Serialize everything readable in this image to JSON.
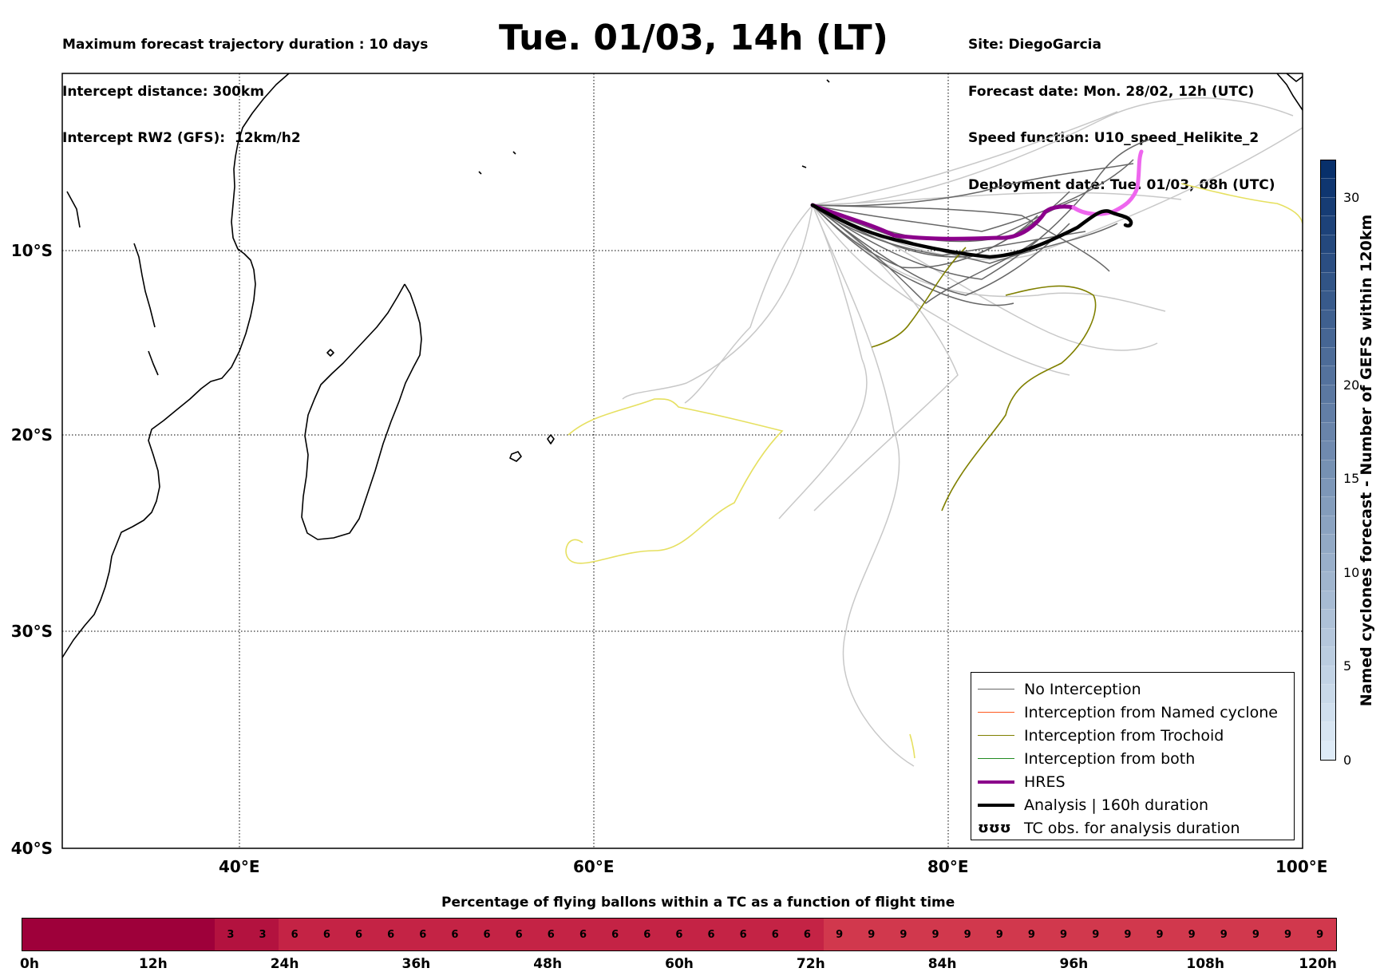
{
  "header_left": [
    "Maximum forecast trajectory duration : 10 days",
    "Intercept distance: 300km",
    "Intercept RW2 (GFS):  12km/h2"
  ],
  "title": "Tue. 01/03, 14h (LT)",
  "header_right": [
    "Site: DiegoGarcia",
    "Forecast date: Mon. 28/02, 12h (UTC)",
    "Speed function: U10_speed_Helikite_2",
    "Deployment date: Tue. 01/03, 08h (UTC)"
  ],
  "map": {
    "lon_range": [
      30,
      100
    ],
    "lat_range": [
      -40,
      0.5
    ],
    "lat_labels": [
      "10°S",
      "20°S",
      "30°S",
      "40°S"
    ],
    "lon_labels": [
      "40°E",
      "60°E",
      "80°E",
      "100°E"
    ],
    "grid": "dotted"
  },
  "legend": {
    "items": [
      {
        "label": "No Interception",
        "color": "#666666"
      },
      {
        "label": "Interception from Named cyclone",
        "color": "#ff5a1e"
      },
      {
        "label": "Interception from Trochoid",
        "color": "#808000"
      },
      {
        "label": "Interception from both",
        "color": "#228b22"
      },
      {
        "label": "HRES",
        "color": "#8b008b"
      },
      {
        "label": "Analysis | 160h duration",
        "color": "#000000"
      },
      {
        "label": "TC obs. for analysis duration",
        "glyph": "ʊʊʊ"
      }
    ],
    "placement": "lower-right"
  },
  "colorbar": {
    "label": "Named cyclones forecast - Number of GEFS within 120km",
    "ticks": [
      "0",
      "5",
      "10",
      "15",
      "20",
      "30"
    ],
    "range": [
      0,
      32
    ]
  },
  "percentage_bar": {
    "title": "Percentage of flying ballons within a TC as a function of flight time",
    "cells": [
      "",
      "",
      "",
      "",
      "",
      "",
      "3",
      "3",
      "6",
      "6",
      "6",
      "6",
      "6",
      "6",
      "6",
      "6",
      "6",
      "6",
      "6",
      "6",
      "6",
      "6",
      "6",
      "6",
      "6",
      "9",
      "9",
      "9",
      "9",
      "9",
      "9",
      "9",
      "9",
      "9",
      "9",
      "9",
      "9",
      "9",
      "9",
      "9",
      "9"
    ],
    "time_labels": [
      "0h",
      "12h",
      "24h",
      "36h",
      "48h",
      "60h",
      "72h",
      "84h",
      "96h",
      "108h",
      "120h"
    ]
  },
  "colors": {
    "no_interception": "#666666",
    "light_ensemble": "#c8c8c8",
    "trochoid": "#808000",
    "yellow_track": "#e6e060",
    "hres": "#8b008b",
    "hres_end": "#ee66ee",
    "analysis": "#000000"
  }
}
